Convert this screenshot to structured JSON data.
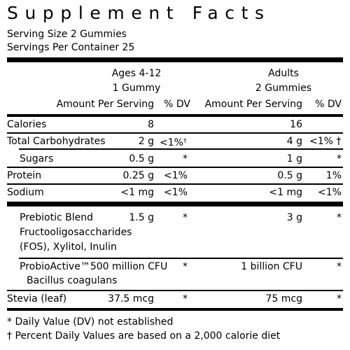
{
  "title": "Supplement Facts",
  "serving_size": "Serving Size 2 Gummies",
  "servings_per_container": "Servings Per Container 25",
  "columns": {
    "ages_label": "Ages 4-12",
    "ages_serving": "1 Gummy",
    "adults_label": "Adults",
    "adults_serving": "2 Gummies",
    "amount_header": "Amount Per Serving",
    "dv_header": "% DV"
  },
  "rows": [
    {
      "name": "Calories",
      "child_amount": "8",
      "child_dv": "",
      "adult_amount": "16",
      "adult_dv": ""
    },
    {
      "name": "Total Carbohydrates",
      "child_amount": "2 g",
      "child_dv": "<1%",
      "child_mark": "†",
      "adult_amount": "4 g",
      "adult_dv": "<1%",
      "adult_mark": "†"
    },
    {
      "name": "Sugars",
      "child_amount": "0.5 g",
      "child_dv": "*",
      "adult_amount": "1 g",
      "adult_dv": "*"
    },
    {
      "name": "Protein",
      "child_amount": "0.25 g",
      "child_dv": "<1%",
      "adult_amount": "0.5 g",
      "adult_dv": "1%"
    },
    {
      "name": "Sodium",
      "child_amount": "<1 mg",
      "child_dv": "<1%",
      "adult_amount": "<1 mg",
      "adult_dv": "<1%"
    },
    {
      "name_line1": "Prebiotic Blend",
      "name_line2": "Fructooligosaccharides",
      "name_line3": "(FOS), Xylitol, Inulin",
      "child_amount": "1.5 g",
      "child_dv": "*",
      "adult_amount": "3 g",
      "adult_dv": "*"
    },
    {
      "name_line1": "ProbioActive™",
      "child_amount": "500 million CFU",
      "name_line2": "Bacillus coagulans",
      "child_dv": "*",
      "adult_amount": "1 billion CFU",
      "adult_dv": "*"
    },
    {
      "name": "Stevia (leaf)",
      "child_amount": "37.5 mcg",
      "child_dv": "*",
      "adult_amount": "75 mcg",
      "adult_dv": "*"
    }
  ],
  "footnotes": [
    "* Daily Value (DV) not established",
    "† Percent Daily Values are based on a 2,000 calorie diet"
  ]
}
